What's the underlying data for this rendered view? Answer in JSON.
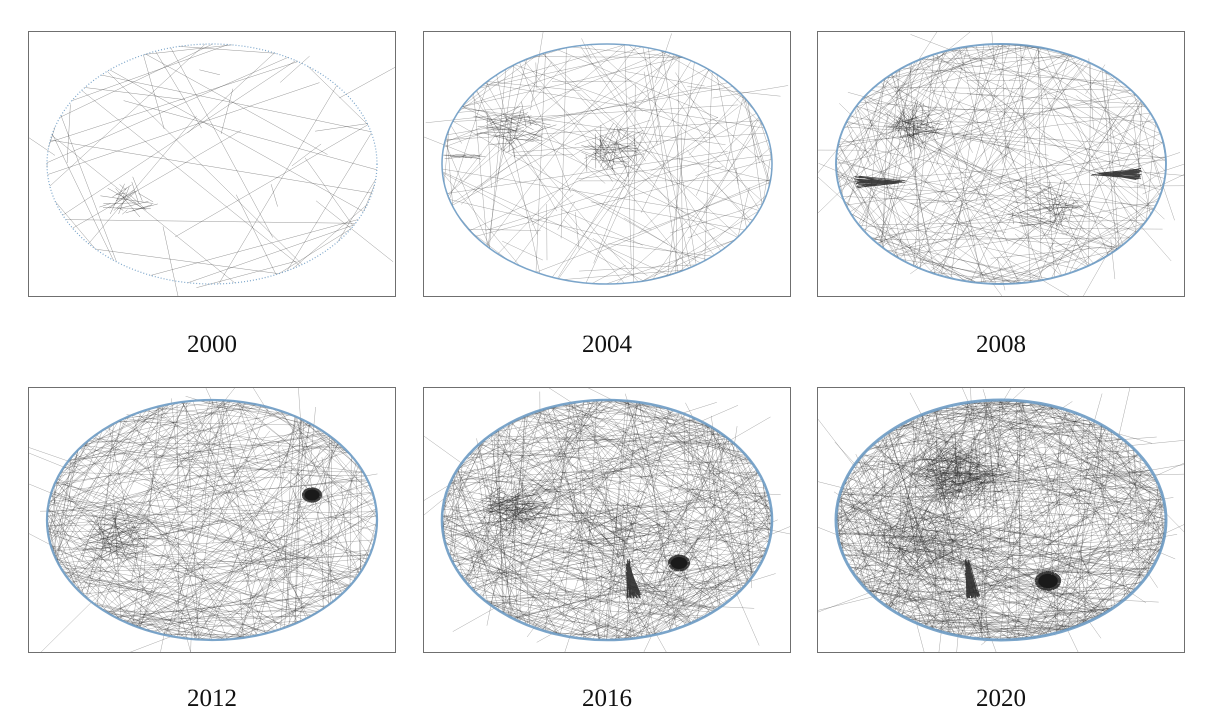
{
  "figure": {
    "panels": [
      {
        "year": "2000",
        "edge_density": 55,
        "clusters": [
          "lower-left"
        ]
      },
      {
        "year": "2004",
        "edge_density": 170,
        "clusters": [
          "upper-left",
          "upper-center",
          "left-bar"
        ]
      },
      {
        "year": "2008",
        "edge_density": 300,
        "clusters": [
          "upper-left",
          "left-wedge",
          "right-wedge",
          "center"
        ]
      },
      {
        "year": "2012",
        "edge_density": 420,
        "clusters": [
          "left",
          "right-dense-blob"
        ]
      },
      {
        "year": "2016",
        "edge_density": 560,
        "clusters": [
          "upper-left",
          "center-wedge",
          "dense-blob"
        ]
      },
      {
        "year": "2020",
        "edge_density": 700,
        "clusters": [
          "upper-center",
          "bottom-wedge",
          "dense-blob"
        ]
      }
    ],
    "colors": {
      "node_ring": "#6d9bc4",
      "edge": "#2b2b2b",
      "border": "#6f6f6f",
      "background": "#ffffff"
    }
  }
}
